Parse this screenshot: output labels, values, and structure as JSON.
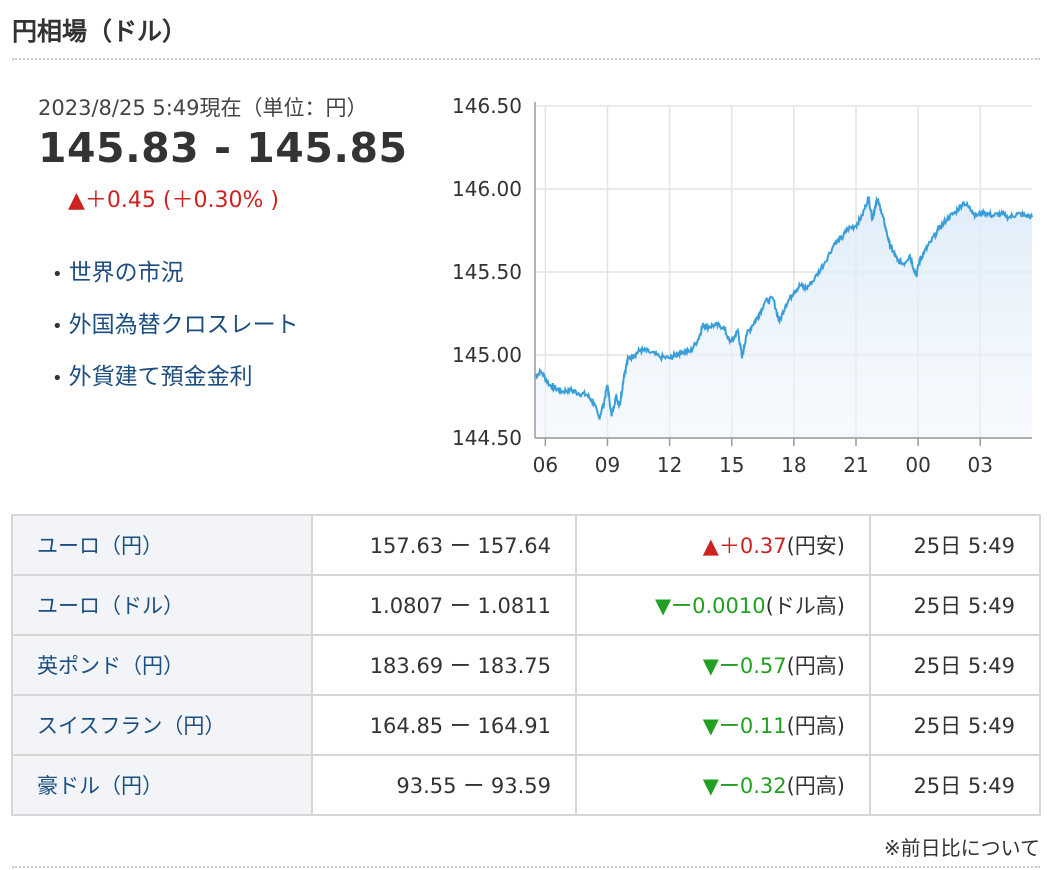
{
  "section_title": "円相場（ドル）",
  "as_of": "2023/8/25 5:49現在（単位：円）",
  "rate": "145.83 - 145.85",
  "change": "▲＋0.45 (＋0.30% )",
  "links": [
    "世界の市況",
    "外国為替クロスレート",
    "外貨建て預金金利"
  ],
  "rates_table": [
    {
      "name": "ユーロ（円）",
      "quote": "157.63 ー 157.64",
      "arrow": "▲",
      "diff": "＋0.37",
      "direction": "up",
      "suffix": "(円安)",
      "time": "25日 5:49"
    },
    {
      "name": "ユーロ（ドル）",
      "quote": "1.0807 ー 1.0811",
      "arrow": "▼",
      "diff": "ー0.0010",
      "direction": "down",
      "suffix": "(ドル高)",
      "time": "25日 5:49"
    },
    {
      "name": "英ポンド（円）",
      "quote": "183.69 ー 183.75",
      "arrow": "▼",
      "diff": "ー0.57",
      "direction": "down",
      "suffix": "(円高)",
      "time": "25日 5:49"
    },
    {
      "name": "スイスフラン（円）",
      "quote": "164.85 ー 164.91",
      "arrow": "▼",
      "diff": "ー0.11",
      "direction": "down",
      "suffix": "(円高)",
      "time": "25日 5:49"
    },
    {
      "name": "豪ドル（円）",
      "quote": "93.55 ー 93.59",
      "arrow": "▼",
      "diff": "ー0.32",
      "direction": "down",
      "suffix": "(円高)",
      "time": "25日 5:49"
    }
  ],
  "note": "※前日比について",
  "chart_data": {
    "type": "line",
    "title": "",
    "xlabel": "",
    "ylabel": "",
    "x_ticks": [
      "06",
      "09",
      "12",
      "15",
      "18",
      "21",
      "00",
      "03"
    ],
    "y_ticks": [
      "146.50",
      "146.00",
      "145.50",
      "145.00",
      "144.50"
    ],
    "ylim": [
      144.5,
      146.5
    ],
    "xlim": [
      5.5,
      29.5
    ],
    "grid": true,
    "line_color": "#3a9fd8",
    "x": [
      5.5,
      5.8,
      6.2,
      6.5,
      6.8,
      7.2,
      7.6,
      8.0,
      8.3,
      8.6,
      8.8,
      9.0,
      9.2,
      9.4,
      9.6,
      9.8,
      10.0,
      10.3,
      10.6,
      11.0,
      11.5,
      12.0,
      12.3,
      12.6,
      13.0,
      13.4,
      13.6,
      13.8,
      14.2,
      14.6,
      14.9,
      15.1,
      15.3,
      15.5,
      15.7,
      16.0,
      16.3,
      16.6,
      17.0,
      17.3,
      17.6,
      18.0,
      18.3,
      18.6,
      19.0,
      19.5,
      20.0,
      20.3,
      20.6,
      21.0,
      21.3,
      21.6,
      21.8,
      22.0,
      22.2,
      22.4,
      22.6,
      22.8,
      23.0,
      23.3,
      23.6,
      23.9,
      24.1,
      24.3,
      24.6,
      25.0,
      25.4,
      25.8,
      26.2,
      26.6,
      26.8,
      27.2,
      27.6,
      28.0,
      28.4,
      28.8,
      29.2,
      29.5
    ],
    "y": [
      144.87,
      144.9,
      144.82,
      144.8,
      144.78,
      144.79,
      144.77,
      144.76,
      144.72,
      144.62,
      144.7,
      144.82,
      144.63,
      144.75,
      144.7,
      144.88,
      144.98,
      145.0,
      145.03,
      145.02,
      144.99,
      144.98,
      145.0,
      145.02,
      145.02,
      145.1,
      145.18,
      145.17,
      145.18,
      145.17,
      145.08,
      145.1,
      145.15,
      144.98,
      145.12,
      145.18,
      145.24,
      145.32,
      145.34,
      145.2,
      145.3,
      145.38,
      145.42,
      145.4,
      145.46,
      145.56,
      145.68,
      145.7,
      145.76,
      145.78,
      145.84,
      145.95,
      145.82,
      145.94,
      145.88,
      145.78,
      145.68,
      145.62,
      145.57,
      145.55,
      145.6,
      145.48,
      145.58,
      145.62,
      145.68,
      145.76,
      145.82,
      145.86,
      145.92,
      145.87,
      145.84,
      145.86,
      145.84,
      145.85,
      145.83,
      145.85,
      145.84,
      145.83
    ]
  }
}
